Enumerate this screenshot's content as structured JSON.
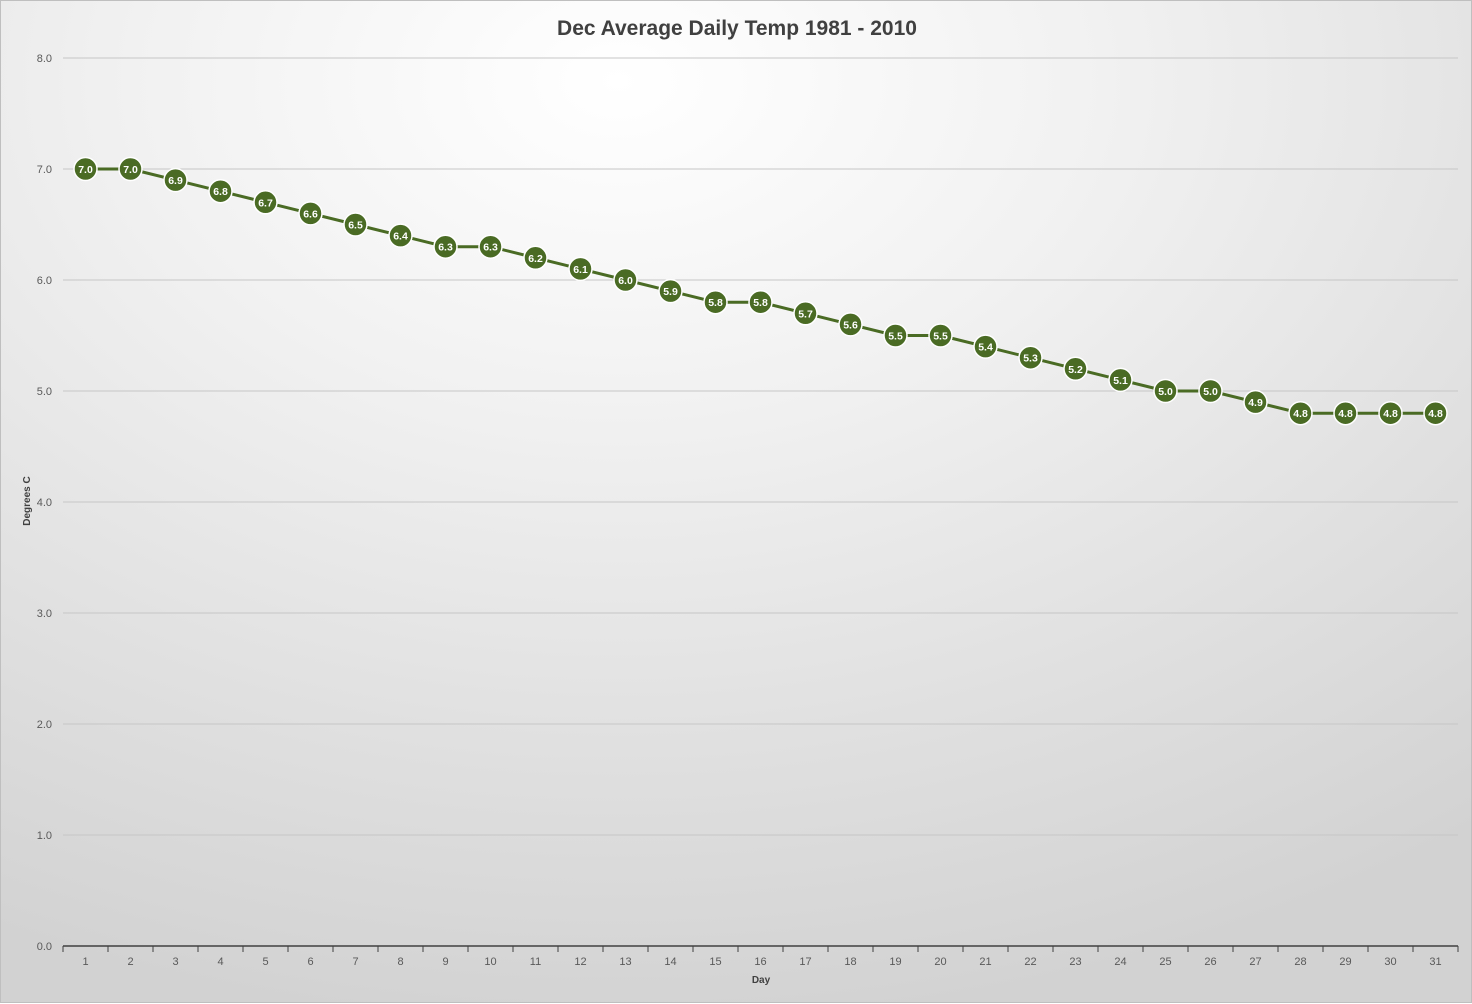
{
  "chart_data": {
    "type": "line",
    "title": "Dec Average Daily Temp 1981 - 2010",
    "xlabel": "Day",
    "ylabel": "Degrees C",
    "ylim": [
      0,
      8
    ],
    "ytick_step": 1,
    "ytick_labels": [
      "0.0",
      "1.0",
      "2.0",
      "3.0",
      "4.0",
      "5.0",
      "6.0",
      "7.0",
      "8.0"
    ],
    "grid": true,
    "legend": "none",
    "categories": [
      "1",
      "2",
      "3",
      "4",
      "5",
      "6",
      "7",
      "8",
      "9",
      "10",
      "11",
      "12",
      "13",
      "14",
      "15",
      "16",
      "17",
      "18",
      "19",
      "20",
      "21",
      "22",
      "23",
      "24",
      "25",
      "26",
      "27",
      "28",
      "29",
      "30",
      "31"
    ],
    "series": [
      {
        "values": [
          7.0,
          7.0,
          6.9,
          6.8,
          6.7,
          6.6,
          6.5,
          6.4,
          6.3,
          6.3,
          6.2,
          6.1,
          6.0,
          5.9,
          5.8,
          5.8,
          5.7,
          5.6,
          5.5,
          5.5,
          5.4,
          5.3,
          5.2,
          5.1,
          5.0,
          5.0,
          4.9,
          4.8,
          4.8,
          4.8,
          4.8
        ],
        "labels": [
          "7.0",
          "7.0",
          "6.9",
          "6.8",
          "6.7",
          "6.6",
          "6.5",
          "6.4",
          "6.3",
          "6.3",
          "6.2",
          "6.1",
          "6.0",
          "5.9",
          "5.8",
          "5.8",
          "5.7",
          "5.6",
          "5.5",
          "5.5",
          "5.4",
          "5.3",
          "5.2",
          "5.1",
          "5.0",
          "5.0",
          "4.9",
          "4.8",
          "4.8",
          "4.8",
          "4.8"
        ],
        "color": "#4a6b24"
      }
    ]
  }
}
